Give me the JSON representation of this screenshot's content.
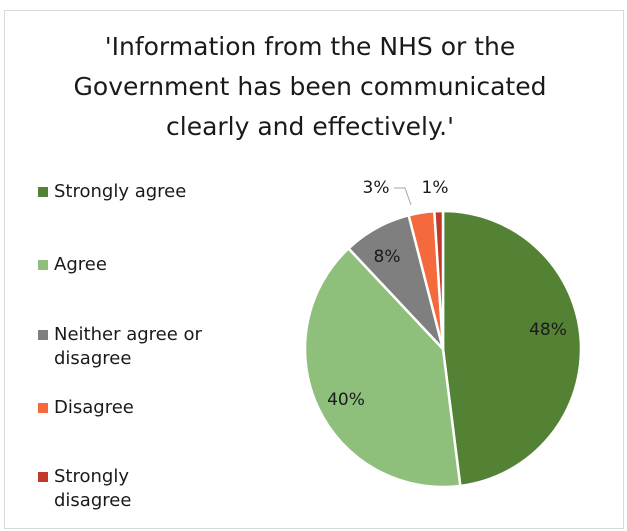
{
  "chart_data": {
    "type": "pie",
    "title": "'Information from the NHS or the Government has been communicated clearly and effectively.'",
    "title_lines": [
      "'Information from the NHS or the",
      "Government has been communicated",
      "clearly and effectively.'"
    ],
    "legend_position": "left",
    "slices": [
      {
        "label": "Strongly agree",
        "value": 48,
        "value_label": "48%",
        "color": "#548235"
      },
      {
        "label": "Agree",
        "value": 40,
        "value_label": "40%",
        "color": "#8ec07c"
      },
      {
        "label": "Neither agree or disagree",
        "value": 8,
        "value_label": "8%",
        "color": "#7f7f7f"
      },
      {
        "label": "Disagree",
        "value": 3,
        "value_label": "3%",
        "color": "#f46a3c"
      },
      {
        "label": "Strongly disagree",
        "value": 1,
        "value_label": "1%",
        "color": "#c0392b"
      }
    ]
  }
}
